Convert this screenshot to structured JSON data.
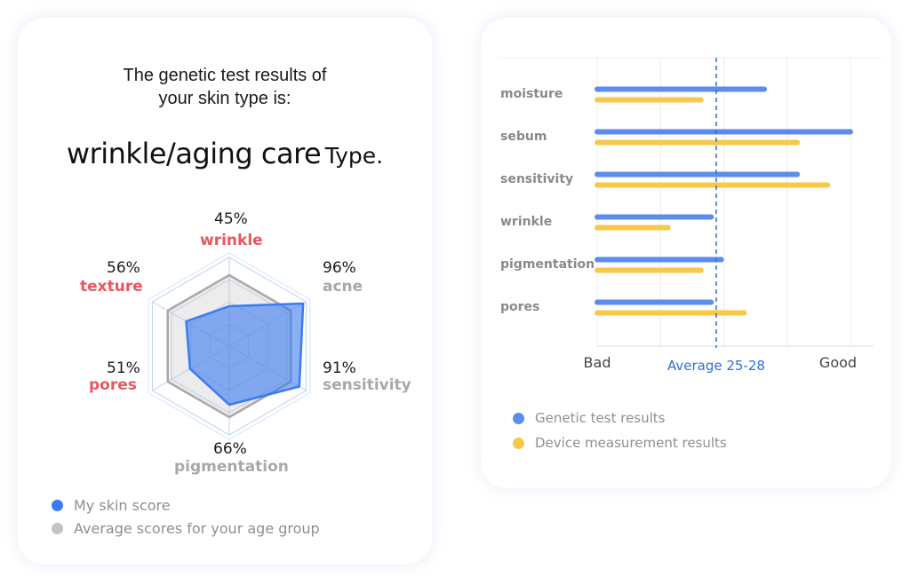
{
  "left_card": {
    "headline_line1": "The genetic test results of",
    "headline_line2": "your skin type is:",
    "type_main": "wrinkle/aging care",
    "type_suffix": "Type.",
    "legend": [
      {
        "label": "My skin score",
        "color": "#3b7bf0"
      },
      {
        "label": "Average scores for your age group",
        "color": "#c4c4c4"
      }
    ]
  },
  "right_card": {
    "legend": [
      {
        "label": "Genetic test results",
        "color": "#5b8def"
      },
      {
        "label": "Device measurement results",
        "color": "#f7c84a"
      }
    ]
  },
  "chart_data": [
    {
      "type": "radar",
      "axes": [
        {
          "label": "wrinkle",
          "percent": "45%",
          "value": 45,
          "highlight": "red"
        },
        {
          "label": "acne",
          "percent": "96%",
          "value": 96,
          "highlight": "grey"
        },
        {
          "label": "sensitivity",
          "percent": "91%",
          "value": 91,
          "highlight": "grey"
        },
        {
          "label": "pigmentation",
          "percent": "66%",
          "value": 66,
          "highlight": "grey"
        },
        {
          "label": "pores",
          "percent": "51%",
          "value": 51,
          "highlight": "red"
        },
        {
          "label": "texture",
          "percent": "56%",
          "value": 56,
          "highlight": "red"
        }
      ],
      "series": [
        {
          "name": "My skin score",
          "values": [
            45,
            96,
            91,
            66,
            51,
            56
          ],
          "color": "#3b7bf0"
        },
        {
          "name": "Average scores for your age group",
          "values": [
            80,
            80,
            80,
            80,
            80,
            80
          ],
          "color": "#a9a9a9"
        }
      ],
      "max": 100
    },
    {
      "type": "bar",
      "orientation": "horizontal",
      "categories": [
        "moisture",
        "sebum",
        "sensitivity",
        "wrinkle",
        "pigmentation",
        "pores"
      ],
      "series": [
        {
          "name": "Genetic test results",
          "values": [
            66,
            100,
            79,
            45,
            49,
            45
          ],
          "color": "#5b8def"
        },
        {
          "name": "Device measurement results",
          "values": [
            41,
            79,
            91,
            28,
            41,
            58
          ],
          "color": "#f7c84a"
        }
      ],
      "xlim": [
        0,
        100
      ],
      "x_tick_labels": [
        "Bad",
        "Good"
      ],
      "reference_line": {
        "label": "Average 25-28",
        "value": 47
      }
    }
  ]
}
